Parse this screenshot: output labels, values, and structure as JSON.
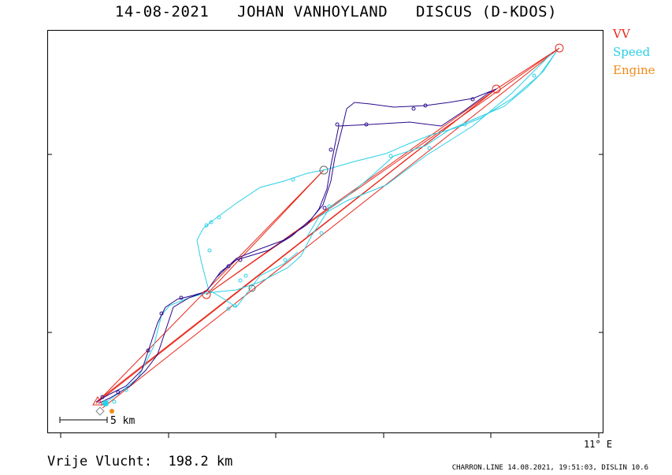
{
  "title": "14-08-2021   JOHAN VANHOYLAND   DISCUS (D-KDOS)",
  "legend": [
    {
      "label": "VV",
      "color": "#e8281a"
    },
    {
      "label": "Speed",
      "color": "#2ad0e6"
    },
    {
      "label": "Engine",
      "color": "#f08a18"
    }
  ],
  "axis_label": "11° E",
  "scale_label": "5 km",
  "distance_label": "Vrije Vlucht:  198.2 km",
  "footer": "CHARRON.LINE 14.08.2021, 19:51:03, DISLIN 10.6",
  "colors": {
    "track_dark": "#2a0a8c",
    "track_light": "#2ad0e6",
    "vv_line": "#e8281a",
    "engine": "#f08a18"
  }
}
